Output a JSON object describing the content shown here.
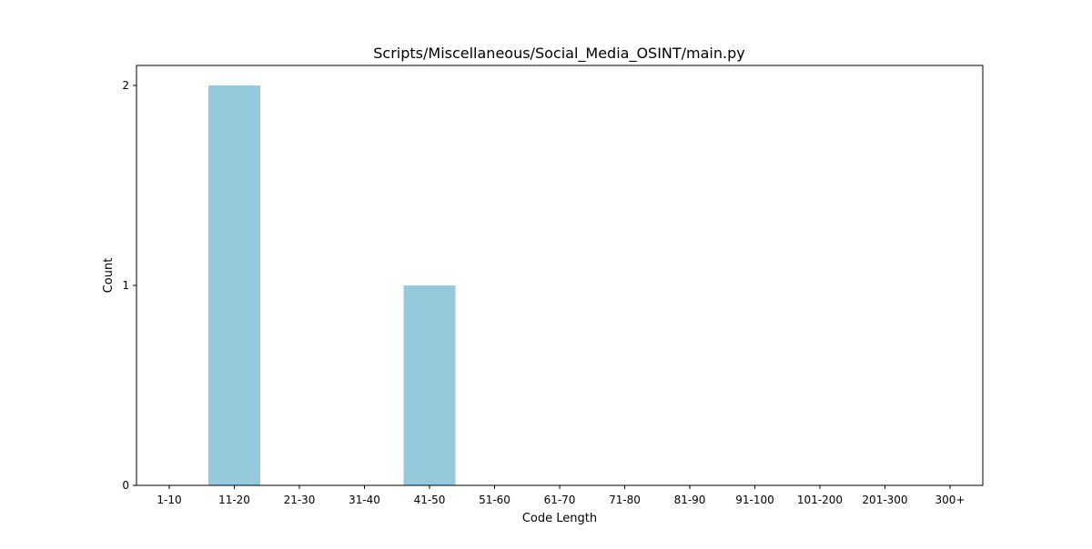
{
  "chart_data": {
    "type": "bar",
    "title": "Scripts/Miscellaneous/Social_Media_OSINT/main.py",
    "xlabel": "Code Length",
    "ylabel": "Count",
    "categories": [
      "1-10",
      "11-20",
      "21-30",
      "31-40",
      "41-50",
      "51-60",
      "61-70",
      "71-80",
      "81-90",
      "91-100",
      "101-200",
      "201-300",
      "300+"
    ],
    "values": [
      0,
      2,
      0,
      0,
      1,
      0,
      0,
      0,
      0,
      0,
      0,
      0,
      0
    ],
    "yticks": [
      0,
      1,
      2
    ],
    "ylim": [
      0,
      2.1
    ],
    "grid": false,
    "bar_color": "#96c9dc"
  }
}
